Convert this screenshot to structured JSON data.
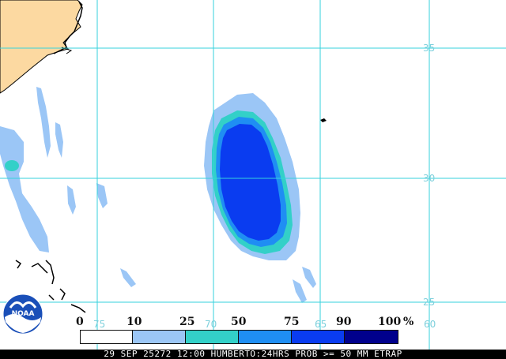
{
  "map": {
    "latitude_labels": [
      "35",
      "30",
      "25"
    ],
    "longitude_labels": [
      "75",
      "70",
      "65",
      "60"
    ],
    "colors": {
      "land": "#fcd9a1",
      "grid": "#36d2dc",
      "coast": "#000000",
      "ocean": "#ffffff"
    }
  },
  "legend": {
    "labels": [
      "0",
      "10",
      "25",
      "50",
      "75",
      "90",
      "100"
    ],
    "unit": "%",
    "colors": [
      "#ffffff",
      "#9bc6f6",
      "#33d0c8",
      "#1f8ef3",
      "#0a3cf0",
      "#00008c"
    ]
  },
  "footer": {
    "caption": "29 SEP 25272 12:00 HUMBERTO:24HRS PROB >= 50 MM ETRAP"
  },
  "logo": {
    "text": "NOAA",
    "icon": "noaa-logo-icon"
  }
}
